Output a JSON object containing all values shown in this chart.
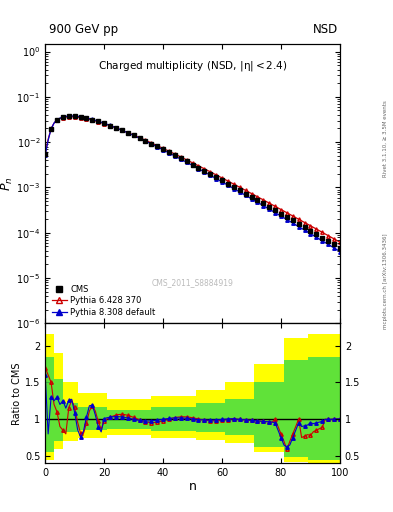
{
  "header_left": "900 GeV pp",
  "header_right": "NSD",
  "title": "Charged multiplicity",
  "title_detail": "(NSD, |#eta| < 2.4)",
  "xlabel": "n",
  "ylabel_main": "P_{n}",
  "ylabel_ratio": "Ratio to CMS",
  "watermark": "CMS_2011_S8884919",
  "right_label_top": "Rivet 3.1.10, ≥ 3.5M events",
  "right_label_bot": "mcplots.cern.ch [arXiv:1306.3436]",
  "cms_color": "#000000",
  "py6_color": "#cc0000",
  "py8_color": "#0000cc",
  "band_yellow": "#ffff00",
  "band_green": "#44dd44",
  "legend_labels": [
    "CMS",
    "Pythia 6.428 370",
    "Pythia 8.308 default"
  ],
  "xlim": [
    0,
    100
  ],
  "ylim_main_log": [
    -6,
    0.3
  ],
  "ylim_ratio": [
    0.4,
    2.3
  ],
  "ratio_yticks": [
    0.5,
    1.0,
    1.5,
    2.0
  ]
}
